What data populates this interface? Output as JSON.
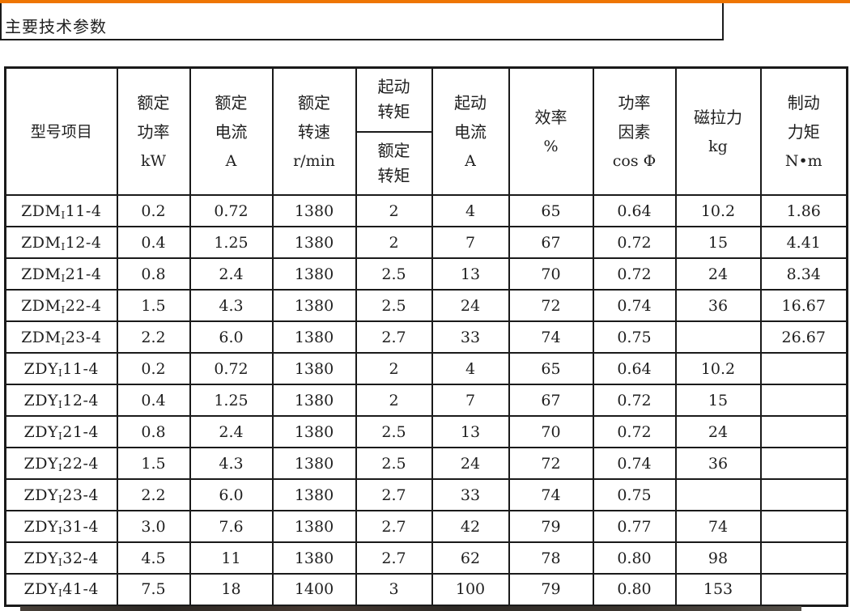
{
  "page": {
    "title": "主要技术参数"
  },
  "theme": {
    "accent_orange": "#ee7502",
    "border_dark": "#1a1a1a",
    "text_color": "#1f1f1f"
  },
  "table": {
    "columns": [
      {
        "id": "model",
        "lines": [
          "型号项目"
        ]
      },
      {
        "id": "rated_power",
        "lines": [
          "额定",
          "功率",
          "kW"
        ]
      },
      {
        "id": "rated_current",
        "lines": [
          "额定",
          "电流",
          "A"
        ]
      },
      {
        "id": "rated_speed",
        "lines": [
          "额定",
          "转速",
          "r/min"
        ]
      },
      {
        "id": "torque_ratio",
        "top_lines": [
          "起动",
          "转矩"
        ],
        "bottom_lines": [
          "额定",
          "转矩"
        ]
      },
      {
        "id": "starting_current",
        "lines": [
          "起动",
          "电流",
          "A"
        ]
      },
      {
        "id": "efficiency",
        "lines": [
          "效率",
          "%"
        ]
      },
      {
        "id": "power_factor",
        "lines": [
          "功率",
          "因素",
          "cos Φ"
        ]
      },
      {
        "id": "magnetic_pull",
        "lines": [
          "磁拉力",
          "kg"
        ]
      },
      {
        "id": "braking_torque",
        "lines": [
          "制动",
          "力矩",
          "N•m"
        ]
      }
    ],
    "rows": [
      {
        "model": {
          "prefix": "ZDM",
          "subscript": "I",
          "suffix": "11-4"
        },
        "values": [
          "0.2",
          "0.72",
          "1380",
          "2",
          "4",
          "65",
          "0.64",
          "10.2",
          "1.86"
        ]
      },
      {
        "model": {
          "prefix": "ZDM",
          "subscript": "I",
          "suffix": "12-4"
        },
        "values": [
          "0.4",
          "1.25",
          "1380",
          "2",
          "7",
          "67",
          "0.72",
          "15",
          "4.41"
        ]
      },
      {
        "model": {
          "prefix": "ZDM",
          "subscript": "I",
          "suffix": "21-4"
        },
        "values": [
          "0.8",
          "2.4",
          "1380",
          "2.5",
          "13",
          "70",
          "0.72",
          "24",
          "8.34"
        ]
      },
      {
        "model": {
          "prefix": "ZDM",
          "subscript": "I",
          "suffix": "22-4"
        },
        "values": [
          "1.5",
          "4.3",
          "1380",
          "2.5",
          "24",
          "72",
          "0.74",
          "36",
          "16.67"
        ]
      },
      {
        "model": {
          "prefix": "ZDM",
          "subscript": "I",
          "suffix": "23-4"
        },
        "values": [
          "2.2",
          "6.0",
          "1380",
          "2.7",
          "33",
          "74",
          "0.75",
          "",
          "26.67"
        ]
      },
      {
        "model": {
          "prefix": "ZDY",
          "subscript": "I",
          "suffix": "11-4"
        },
        "values": [
          "0.2",
          "0.72",
          "1380",
          "2",
          "4",
          "65",
          "0.64",
          "10.2",
          ""
        ]
      },
      {
        "model": {
          "prefix": "ZDY",
          "subscript": "I",
          "suffix": "12-4"
        },
        "values": [
          "0.4",
          "1.25",
          "1380",
          "2",
          "7",
          "67",
          "0.72",
          "15",
          ""
        ]
      },
      {
        "model": {
          "prefix": "ZDY",
          "subscript": "I",
          "suffix": "21-4"
        },
        "values": [
          "0.8",
          "2.4",
          "1380",
          "2.5",
          "13",
          "70",
          "0.72",
          "24",
          ""
        ]
      },
      {
        "model": {
          "prefix": "ZDY",
          "subscript": "I",
          "suffix": "22-4"
        },
        "values": [
          "1.5",
          "4.3",
          "1380",
          "2.5",
          "24",
          "72",
          "0.74",
          "36",
          ""
        ]
      },
      {
        "model": {
          "prefix": "ZDY",
          "subscript": "I",
          "suffix": "23-4"
        },
        "values": [
          "2.2",
          "6.0",
          "1380",
          "2.7",
          "33",
          "74",
          "0.75",
          "",
          ""
        ]
      },
      {
        "model": {
          "prefix": "ZDY",
          "subscript": "I",
          "suffix": "31-4"
        },
        "values": [
          "3.0",
          "7.6",
          "1380",
          "2.7",
          "42",
          "79",
          "0.77",
          "74",
          ""
        ]
      },
      {
        "model": {
          "prefix": "ZDY",
          "subscript": "I",
          "suffix": "32-4"
        },
        "values": [
          "4.5",
          "11",
          "1380",
          "2.7",
          "62",
          "78",
          "0.80",
          "98",
          ""
        ]
      },
      {
        "model": {
          "prefix": "ZDY",
          "subscript": "I",
          "suffix": "41-4"
        },
        "values": [
          "7.5",
          "18",
          "1400",
          "3",
          "100",
          "79",
          "0.80",
          "153",
          ""
        ]
      }
    ]
  }
}
